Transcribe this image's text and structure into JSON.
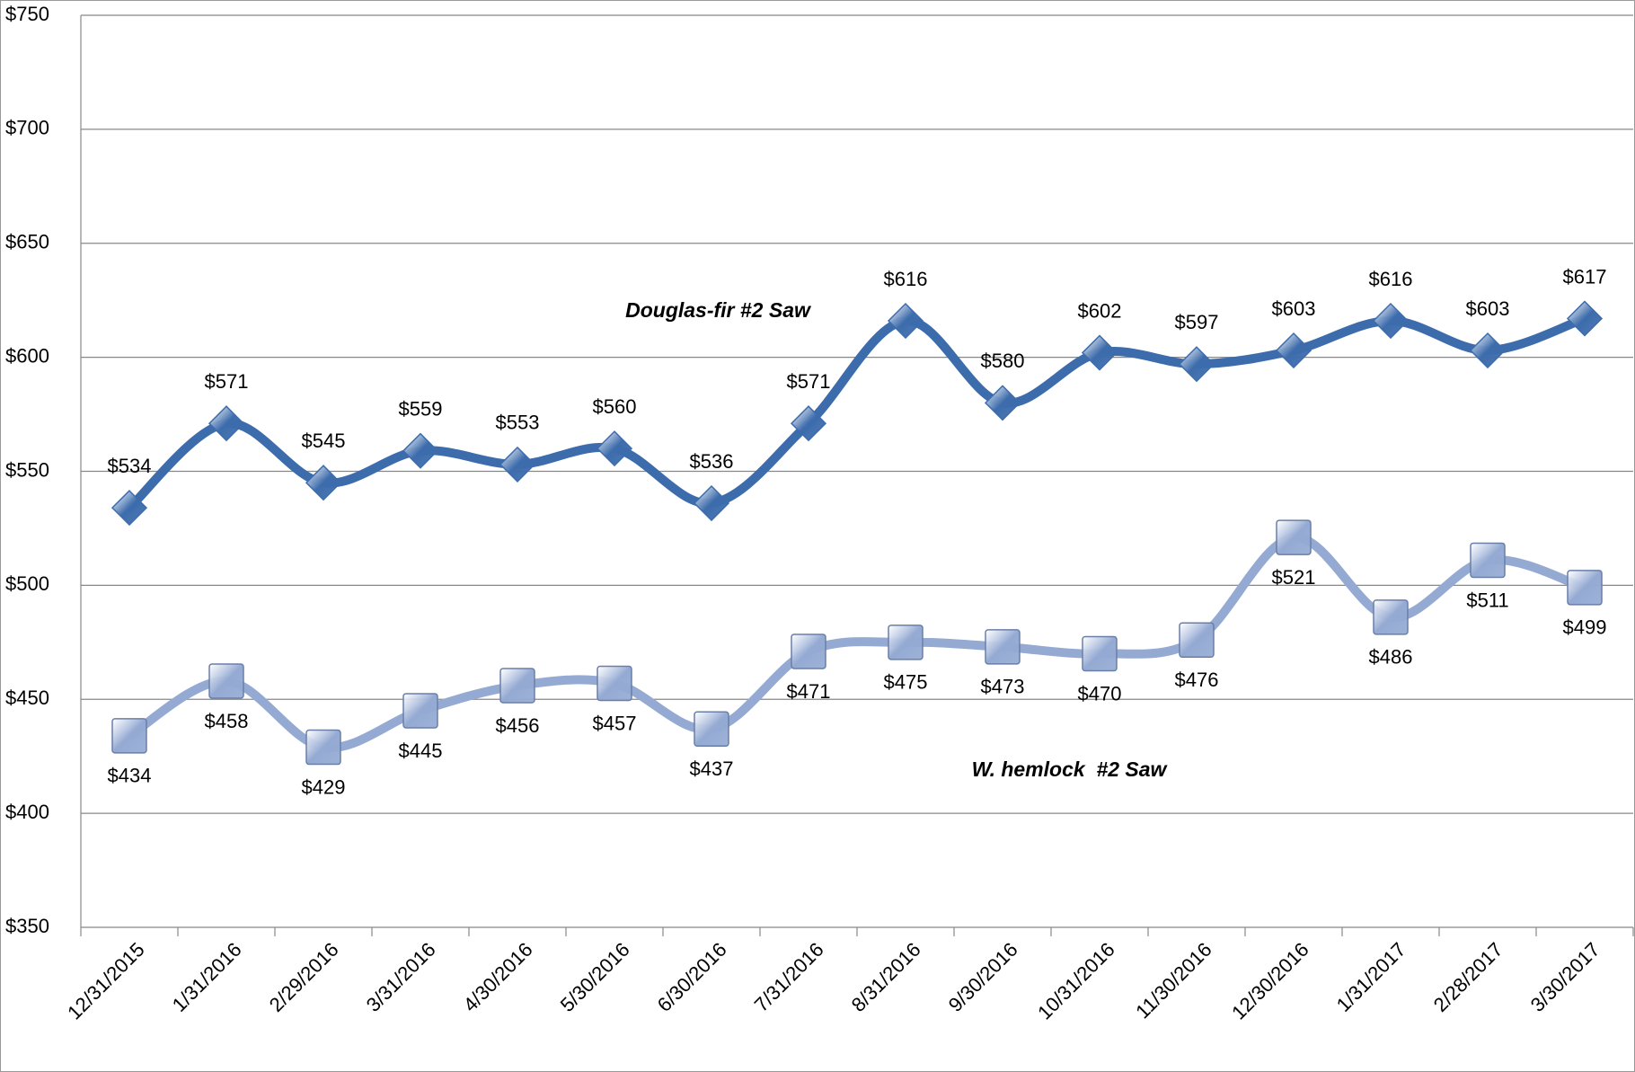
{
  "chart_data": {
    "type": "line",
    "categories": [
      "12/31/2015",
      "1/31/2016",
      "2/29/2016",
      "3/31/2016",
      "4/30/2016",
      "5/30/2016",
      "6/30/2016",
      "7/31/2016",
      "8/31/2016",
      "9/30/2016",
      "10/31/2016",
      "11/30/2016",
      "12/30/2016",
      "1/31/2017",
      "2/28/2017",
      "3/30/2017"
    ],
    "series": [
      {
        "name": "Douglas-fir #2 Saw",
        "color": "#3d6cac",
        "marker": "diamond",
        "values": [
          534,
          571,
          545,
          559,
          553,
          560,
          536,
          571,
          616,
          580,
          602,
          597,
          603,
          616,
          603,
          617
        ],
        "value_labels": [
          "$534",
          "$571",
          "$545",
          "$559",
          "$553",
          "$560",
          "$536",
          "$571",
          "$616",
          "$580",
          "$602",
          "$597",
          "$603",
          "$616",
          "$603",
          "$617"
        ]
      },
      {
        "name": "W. hemlock  #2 Saw",
        "color": "#94aad3",
        "marker": "square",
        "values": [
          434,
          458,
          429,
          445,
          456,
          457,
          437,
          471,
          475,
          473,
          470,
          476,
          521,
          486,
          511,
          499
        ],
        "value_labels": [
          "$434",
          "$458",
          "$429",
          "$445",
          "$456",
          "$457",
          "$437",
          "$471",
          "$475",
          "$473",
          "$470",
          "$476",
          "$521",
          "$486",
          "$511",
          "$499"
        ]
      }
    ],
    "ylim": [
      350,
      750
    ],
    "yticks": [
      {
        "value": 350,
        "label": "$350"
      },
      {
        "value": 400,
        "label": "$400"
      },
      {
        "value": 450,
        "label": "$450"
      },
      {
        "value": 500,
        "label": "$500"
      },
      {
        "value": 550,
        "label": "$550"
      },
      {
        "value": 600,
        "label": "$600"
      },
      {
        "value": 650,
        "label": "$650"
      },
      {
        "value": 700,
        "label": "$700"
      },
      {
        "value": 750,
        "label": "$750"
      }
    ],
    "grid": true
  }
}
